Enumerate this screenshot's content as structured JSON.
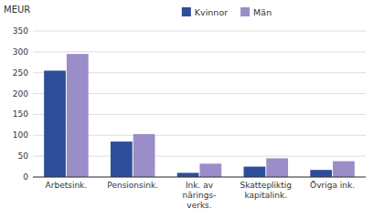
{
  "chart_data": {
    "type": "bar",
    "ylabel": "MEUR",
    "categories": [
      "Arbetsink.",
      "Pensionsink.",
      "Ink. av\nnärings-\nverks.",
      "Skattepliktig\nkapitalink.",
      "Övriga ink."
    ],
    "series": [
      {
        "name": "Kvinnor",
        "color": "#2E4D9B",
        "values": [
          255,
          85,
          10,
          25,
          17
        ]
      },
      {
        "name": "Män",
        "color": "#9B8DC8",
        "values": [
          295,
          103,
          32,
          45,
          38
        ]
      }
    ],
    "ylim": [
      0,
      350
    ],
    "yticks": [
      0,
      50,
      100,
      150,
      200,
      250,
      300,
      350
    ],
    "grid": true,
    "legend": "top"
  }
}
